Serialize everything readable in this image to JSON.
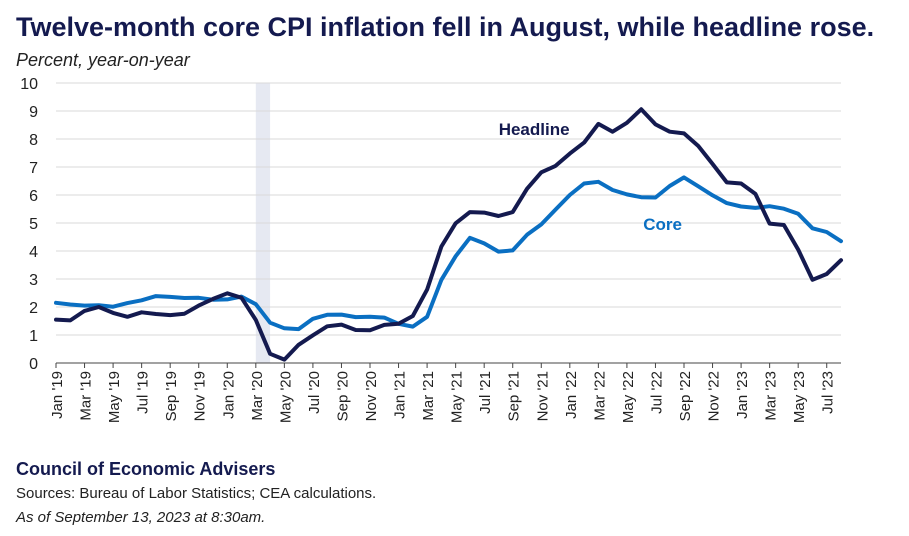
{
  "header": {
    "title": "Twelve-month core CPI inflation fell in August, while headline rose.",
    "subtitle": "Percent, year-on-year"
  },
  "footer": {
    "organization": "Council of Economic Advisers",
    "sources": "Sources: Bureau of Labor Statistics; CEA calculations.",
    "as_of": "As of September 13, 2023 at 8:30am."
  },
  "colors": {
    "headline": "#141a4f",
    "core": "#0a6fc2",
    "recession": "#e6e9f2",
    "grid": "#d9d9d9"
  },
  "chart_data": {
    "type": "line",
    "ylim": [
      0,
      10
    ],
    "y_ticks": [
      0,
      1,
      2,
      3,
      4,
      5,
      6,
      7,
      8,
      9,
      10
    ],
    "grid": true,
    "legend": "inline-labels",
    "shaded_period": {
      "start": "Mar '20",
      "end": "Apr '20"
    },
    "x": [
      "Jan '19",
      "Feb '19",
      "Mar '19",
      "Apr '19",
      "May '19",
      "Jun '19",
      "Jul '19",
      "Aug '19",
      "Sep '19",
      "Oct '19",
      "Nov '19",
      "Dec '19",
      "Jan '20",
      "Feb '20",
      "Mar '20",
      "Apr '20",
      "May '20",
      "Jun '20",
      "Jul '20",
      "Aug '20",
      "Sep '20",
      "Oct '20",
      "Nov '20",
      "Dec '20",
      "Jan '21",
      "Feb '21",
      "Mar '21",
      "Apr '21",
      "May '21",
      "Jun '21",
      "Jul '21",
      "Aug '21",
      "Sep '21",
      "Oct '21",
      "Nov '21",
      "Dec '21",
      "Jan '22",
      "Feb '22",
      "Mar '22",
      "Apr '22",
      "May '22",
      "Jun '22",
      "Jul '22",
      "Aug '22",
      "Sep '22",
      "Oct '22",
      "Nov '22",
      "Dec '22",
      "Jan '23",
      "Feb '23",
      "Mar '23",
      "Apr '23",
      "May '23",
      "Jun '23",
      "Jul '23",
      "Aug '23"
    ],
    "x_tick_labels": [
      "Jan '19",
      "Mar '19",
      "May '19",
      "Jul '19",
      "Sep '19",
      "Nov '19",
      "Jan '20",
      "Mar '20",
      "May '20",
      "Jul '20",
      "Sep '20",
      "Nov '20",
      "Jan '21",
      "Mar '21",
      "May '21",
      "Jul '21",
      "Sep '21",
      "Nov '21",
      "Jan '22",
      "Mar '22",
      "May '22",
      "Jul '22",
      "Sep '22",
      "Nov '22",
      "Jan '23",
      "Mar '23",
      "May '23",
      "Jul '23"
    ],
    "series": [
      {
        "name": "Headline",
        "values": [
          1.55,
          1.52,
          1.86,
          2.0,
          1.79,
          1.65,
          1.81,
          1.75,
          1.71,
          1.76,
          2.05,
          2.29,
          2.49,
          2.33,
          1.54,
          0.33,
          0.12,
          0.65,
          0.99,
          1.31,
          1.37,
          1.18,
          1.17,
          1.36,
          1.4,
          1.68,
          2.62,
          4.16,
          4.99,
          5.39,
          5.37,
          5.25,
          5.39,
          6.22,
          6.81,
          7.04,
          7.48,
          7.87,
          8.54,
          8.26,
          8.58,
          9.06,
          8.52,
          8.26,
          8.2,
          7.75,
          7.11,
          6.45,
          6.41,
          6.04,
          4.98,
          4.93,
          4.05,
          2.97,
          3.18,
          3.67
        ]
      },
      {
        "name": "Core",
        "values": [
          2.15,
          2.09,
          2.05,
          2.06,
          2.01,
          2.14,
          2.24,
          2.39,
          2.36,
          2.32,
          2.33,
          2.26,
          2.27,
          2.37,
          2.1,
          1.44,
          1.24,
          1.21,
          1.58,
          1.72,
          1.73,
          1.64,
          1.65,
          1.62,
          1.4,
          1.3,
          1.65,
          2.97,
          3.81,
          4.47,
          4.27,
          3.98,
          4.02,
          4.58,
          4.95,
          5.48,
          6.0,
          6.41,
          6.47,
          6.18,
          6.02,
          5.92,
          5.91,
          6.32,
          6.63,
          6.31,
          5.99,
          5.71,
          5.59,
          5.54,
          5.6,
          5.51,
          5.33,
          4.81,
          4.68,
          4.35
        ]
      }
    ]
  }
}
